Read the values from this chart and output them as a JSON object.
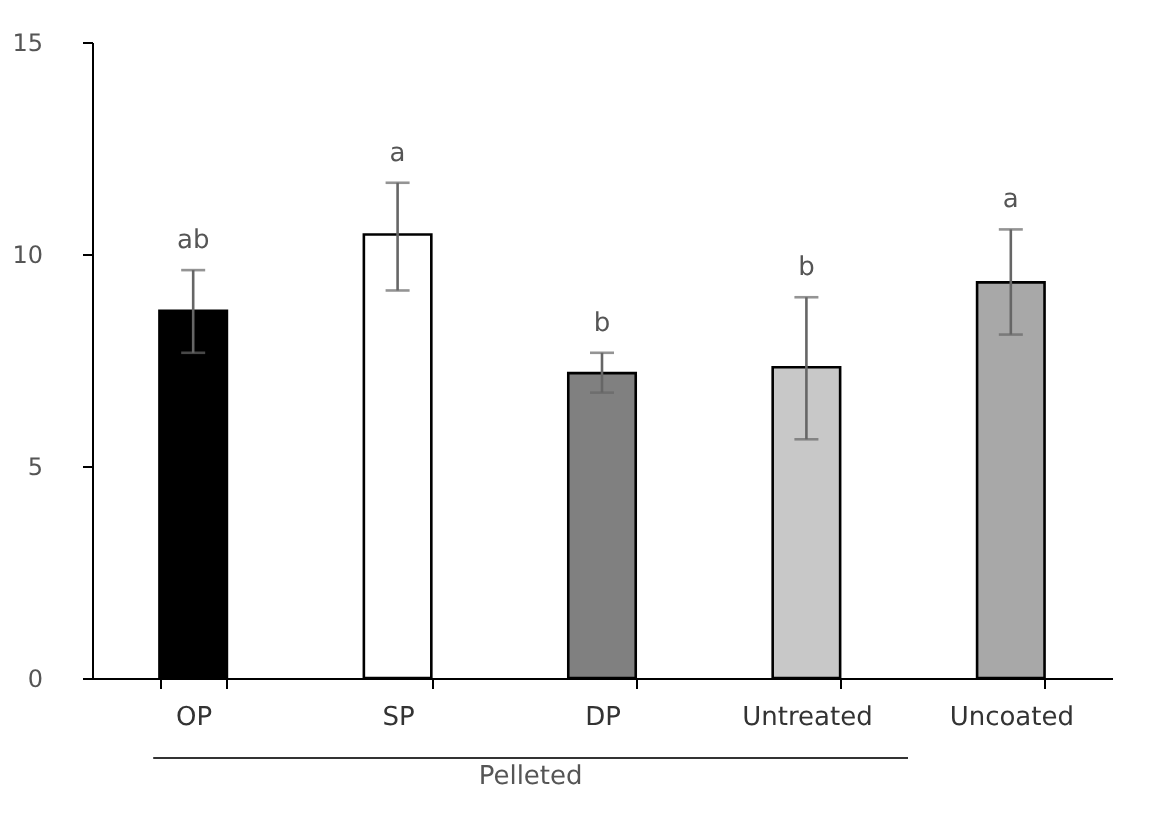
{
  "chart_data": {
    "type": "bar",
    "categories": [
      "OP",
      "SP",
      "DP",
      "Untreated",
      "Uncoated"
    ],
    "values": [
      8.66,
      10.46,
      7.19,
      7.33,
      9.33
    ],
    "errors": [
      [
        7.67,
        9.62
      ],
      [
        9.14,
        11.68
      ],
      [
        6.73,
        7.67
      ],
      [
        5.63,
        8.98
      ],
      [
        8.1,
        10.58
      ]
    ],
    "colors": [
      "#000000",
      "#ffffff",
      "#808080",
      "#c8c8c8",
      "#a8a8a8"
    ],
    "ylim": [
      0,
      15
    ],
    "yticks": [
      0,
      5,
      10,
      15
    ],
    "grid": false,
    "annotations": [
      {
        "text": "ab",
        "x": "OP",
        "y": 9.62
      },
      {
        "text": "a",
        "x": "SP",
        "y": 11.68
      },
      {
        "text": "b",
        "x": "DP",
        "y": 7.67
      },
      {
        "text": "b",
        "x": "Untreated",
        "y": 8.98
      },
      {
        "text": "a",
        "x": "Uncoated",
        "y": 10.58
      },
      "Pelleted"
    ]
  }
}
